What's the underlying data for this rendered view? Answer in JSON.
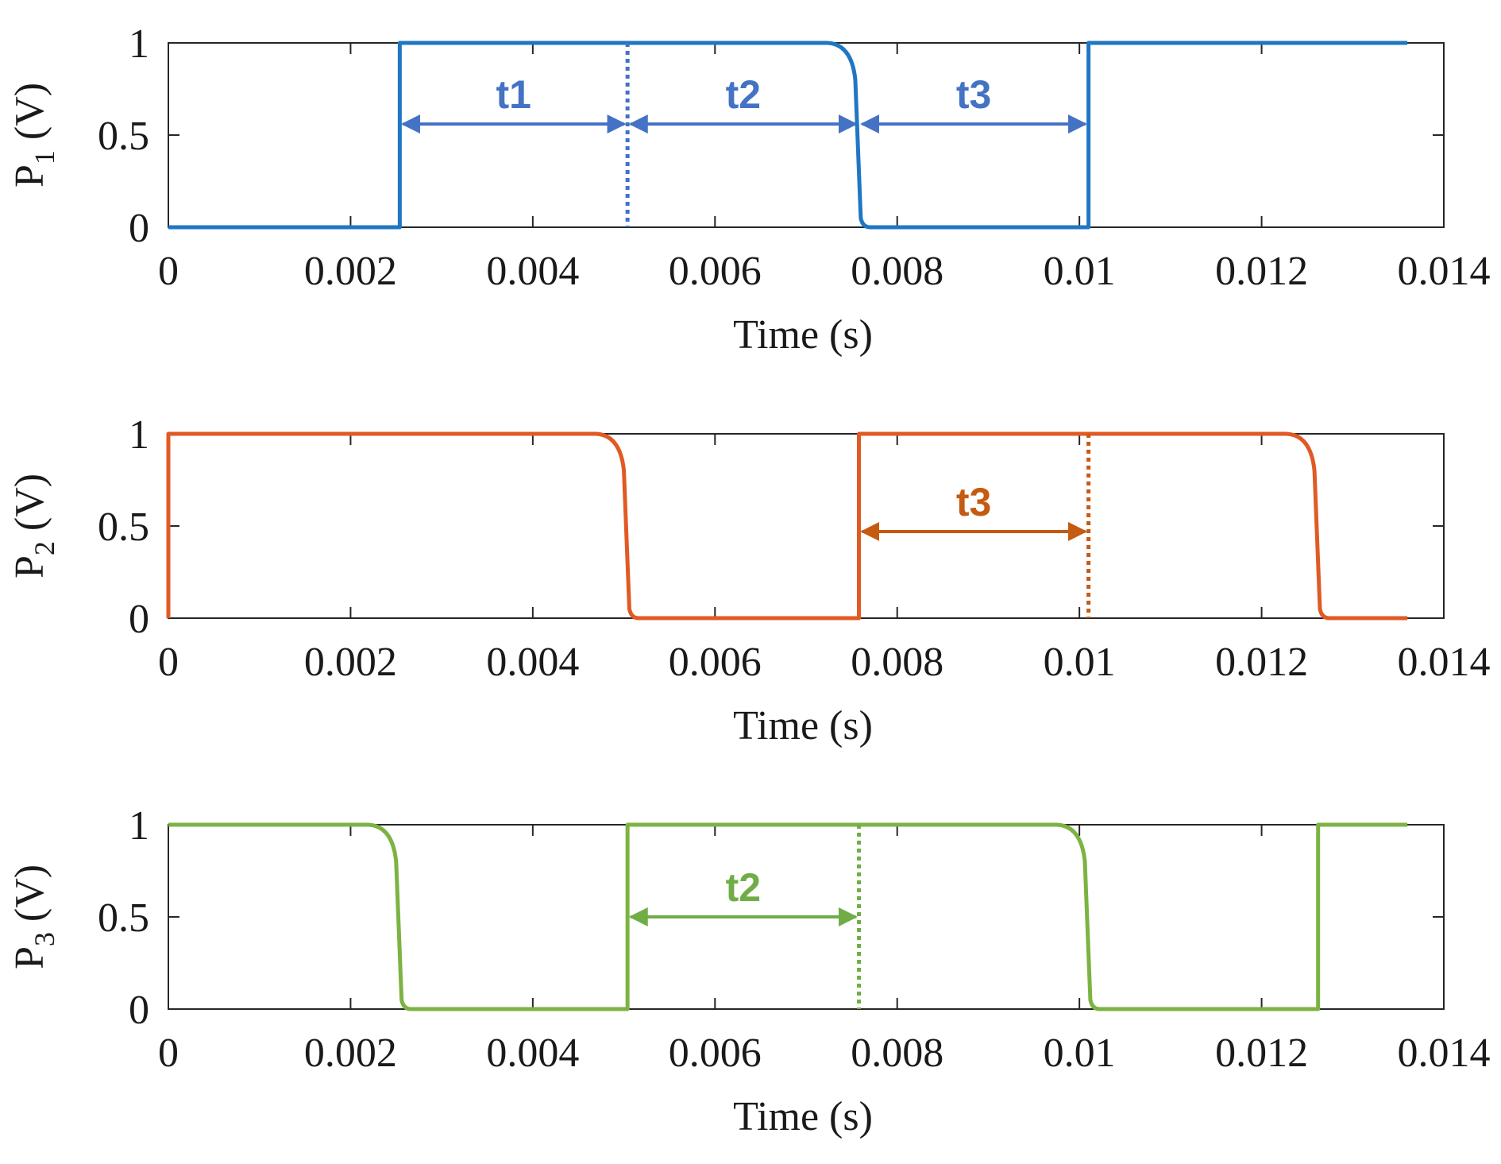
{
  "chart_data": [
    {
      "type": "line",
      "id": "p1",
      "ylabel_main": "P",
      "ylabel_sub": "1",
      "ylabel_unit": " (V)",
      "xlabel": "Time (s)",
      "xlim": [
        0,
        0.014
      ],
      "ylim": [
        0,
        1
      ],
      "xticks": [
        "0",
        "0.002",
        "0.004",
        "0.006",
        "0.008",
        "0.01",
        "0.012",
        "0.014"
      ],
      "yticks": [
        "0",
        "0.5",
        "1"
      ],
      "color": "#1f77c4",
      "annot_color": "#4472c4",
      "initial": 0,
      "transitions": [
        {
          "t": 0.00254,
          "dir": "up"
        },
        {
          "t": 0.00758,
          "dir": "down"
        },
        {
          "t": 0.0101,
          "dir": "up"
        }
      ],
      "t_end": 0.0136,
      "dotted_lines": [
        0.00504
      ],
      "annotations": [
        {
          "label": "t1",
          "x0": 0.00254,
          "x1": 0.00504,
          "y": 0.56
        },
        {
          "label": "t2",
          "x0": 0.00504,
          "x1": 0.00758,
          "y": 0.56
        },
        {
          "label": "t3",
          "x0": 0.00758,
          "x1": 0.0101,
          "y": 0.56
        }
      ]
    },
    {
      "type": "line",
      "id": "p2",
      "ylabel_main": "P",
      "ylabel_sub": "2",
      "ylabel_unit": " (V)",
      "xlabel": "Time (s)",
      "xlim": [
        0,
        0.014
      ],
      "ylim": [
        0,
        1
      ],
      "xticks": [
        "0",
        "0.002",
        "0.004",
        "0.006",
        "0.008",
        "0.01",
        "0.012",
        "0.014"
      ],
      "yticks": [
        "0",
        "0.5",
        "1"
      ],
      "color": "#e05a24",
      "annot_color": "#c55a11",
      "initial": 0,
      "transitions": [
        {
          "t": 0.0,
          "dir": "up"
        },
        {
          "t": 0.00504,
          "dir": "down"
        },
        {
          "t": 0.00758,
          "dir": "up"
        },
        {
          "t": 0.01262,
          "dir": "down"
        }
      ],
      "t_end": 0.0136,
      "dotted_lines": [
        0.0101
      ],
      "annotations": [
        {
          "label": "t3",
          "x0": 0.00758,
          "x1": 0.0101,
          "y": 0.47
        }
      ]
    },
    {
      "type": "line",
      "id": "p3",
      "ylabel_main": "P",
      "ylabel_sub": "3",
      "ylabel_unit": " (V)",
      "xlabel": "Time (s)",
      "xlim": [
        0,
        0.014
      ],
      "ylim": [
        0,
        1
      ],
      "xticks": [
        "0",
        "0.002",
        "0.004",
        "0.006",
        "0.008",
        "0.01",
        "0.012",
        "0.014"
      ],
      "yticks": [
        "0",
        "0.5",
        "1"
      ],
      "color": "#7cb342",
      "annot_color": "#70ad47",
      "initial": 1,
      "transitions": [
        {
          "t": 0.00254,
          "dir": "down"
        },
        {
          "t": 0.00504,
          "dir": "up"
        },
        {
          "t": 0.0101,
          "dir": "down"
        },
        {
          "t": 0.01262,
          "dir": "up"
        }
      ],
      "t_end": 0.0136,
      "dotted_lines": [
        0.00758
      ],
      "annotations": [
        {
          "label": "t2",
          "x0": 0.00504,
          "x1": 0.00758,
          "y": 0.5
        }
      ]
    }
  ]
}
